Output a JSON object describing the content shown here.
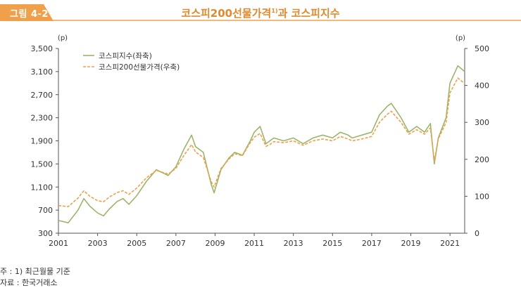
{
  "figure": {
    "label": "그림 4-2",
    "title": "코스피200선물가격",
    "title_sup": "1)",
    "title_rest": "과 코스피지수",
    "accent_color": "#f0a04b"
  },
  "notes": {
    "note": "주 : 1) 최근월물 기준",
    "source": "자료 : 한국거래소"
  },
  "chart_data": {
    "type": "line",
    "left_axis": {
      "unit": "(p)",
      "ylim": [
        300,
        3500
      ],
      "ticks": [
        "3,500",
        "3,100",
        "2,700",
        "2,300",
        "1,900",
        "1,500",
        "1,100",
        "700",
        "300"
      ],
      "tick_values": [
        3500,
        3100,
        2700,
        2300,
        1900,
        1500,
        1100,
        700,
        300
      ]
    },
    "right_axis": {
      "unit": "(p)",
      "ylim": [
        0,
        500
      ],
      "ticks": [
        "500",
        "400",
        "300",
        "200",
        "100",
        "0"
      ],
      "tick_values": [
        500,
        400,
        300,
        200,
        100,
        0
      ]
    },
    "x_ticks": [
      "2001",
      "2003",
      "2005",
      "2007",
      "2009",
      "2011",
      "2013",
      "2015",
      "2017",
      "2019",
      "2021"
    ],
    "x_tick_values": [
      2001,
      2003,
      2005,
      2007,
      2009,
      2011,
      2013,
      2015,
      2017,
      2019,
      2021
    ],
    "xlim": [
      2001,
      2021.75
    ],
    "grid": false,
    "legend_position": "top-left",
    "series": [
      {
        "name": "코스피지수(좌축)",
        "axis": "left",
        "color": "#9bb56a",
        "style": "solid",
        "x": [
          2001.0,
          2001.5,
          2002.0,
          2002.3,
          2002.6,
          2003.0,
          2003.3,
          2003.6,
          2004.0,
          2004.3,
          2004.6,
          2005.0,
          2005.5,
          2006.0,
          2006.3,
          2006.6,
          2007.0,
          2007.4,
          2007.8,
          2008.0,
          2008.4,
          2008.8,
          2008.95,
          2009.3,
          2009.7,
          2010.0,
          2010.4,
          2010.8,
          2011.0,
          2011.3,
          2011.6,
          2011.8,
          2012.0,
          2012.5,
          2013.0,
          2013.5,
          2014.0,
          2014.5,
          2015.0,
          2015.4,
          2015.8,
          2016.0,
          2016.5,
          2017.0,
          2017.4,
          2017.8,
          2018.0,
          2018.5,
          2018.9,
          2019.3,
          2019.7,
          2020.0,
          2020.2,
          2020.4,
          2020.8,
          2021.0,
          2021.4,
          2021.75
        ],
        "values": [
          520,
          480,
          700,
          900,
          770,
          650,
          600,
          720,
          850,
          900,
          800,
          950,
          1200,
          1400,
          1350,
          1300,
          1450,
          1750,
          2000,
          1800,
          1700,
          1150,
          1000,
          1400,
          1600,
          1700,
          1650,
          1900,
          2050,
          2150,
          1850,
          1900,
          1950,
          1900,
          1950,
          1850,
          1950,
          2000,
          1950,
          2050,
          2000,
          1950,
          2000,
          2050,
          2350,
          2500,
          2550,
          2300,
          2050,
          2150,
          2050,
          2200,
          1500,
          1950,
          2300,
          2900,
          3200,
          3100
        ]
      },
      {
        "name": "코스피200선물가격(우축)",
        "axis": "right",
        "color": "#f0a04b",
        "style": "dashed",
        "x": [
          2001.0,
          2001.5,
          2002.0,
          2002.3,
          2002.6,
          2003.0,
          2003.3,
          2003.6,
          2004.0,
          2004.3,
          2004.6,
          2005.0,
          2005.5,
          2006.0,
          2006.3,
          2006.6,
          2007.0,
          2007.4,
          2007.8,
          2008.0,
          2008.4,
          2008.8,
          2008.95,
          2009.3,
          2009.7,
          2010.0,
          2010.4,
          2010.8,
          2011.0,
          2011.3,
          2011.6,
          2011.8,
          2012.0,
          2012.5,
          2013.0,
          2013.5,
          2014.0,
          2014.5,
          2015.0,
          2015.4,
          2015.8,
          2016.0,
          2016.5,
          2017.0,
          2017.4,
          2017.8,
          2018.0,
          2018.5,
          2018.9,
          2019.3,
          2019.7,
          2020.0,
          2020.2,
          2020.4,
          2020.8,
          2021.0,
          2021.4,
          2021.75
        ],
        "values": [
          75,
          72,
          95,
          115,
          100,
          88,
          85,
          98,
          110,
          115,
          105,
          122,
          150,
          170,
          165,
          160,
          175,
          210,
          240,
          220,
          205,
          140,
          125,
          175,
          200,
          215,
          210,
          245,
          260,
          270,
          235,
          240,
          248,
          245,
          250,
          238,
          250,
          255,
          250,
          262,
          255,
          250,
          255,
          262,
          300,
          322,
          330,
          300,
          268,
          280,
          268,
          285,
          195,
          255,
          300,
          380,
          420,
          405
        ]
      }
    ]
  }
}
